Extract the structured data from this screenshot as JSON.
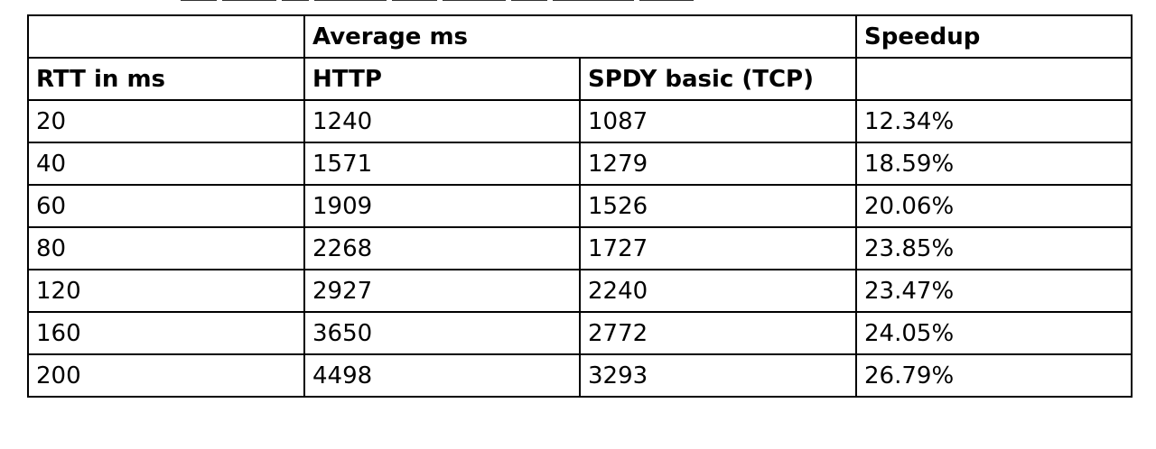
{
  "table": {
    "group_header": {
      "blank": "",
      "average_ms": "Average ms",
      "speedup": "Speedup"
    },
    "columns": {
      "rtt": "RTT in ms",
      "http": "HTTP",
      "spdy": "SPDY basic (TCP)",
      "speedup": ""
    },
    "rows": [
      {
        "rtt": "20",
        "http": "1240",
        "spdy": "1087",
        "speedup": "12.34%"
      },
      {
        "rtt": "40",
        "http": "1571",
        "spdy": "1279",
        "speedup": "18.59%"
      },
      {
        "rtt": "60",
        "http": "1909",
        "spdy": "1526",
        "speedup": "20.06%"
      },
      {
        "rtt": "80",
        "http": "2268",
        "spdy": "1727",
        "speedup": "23.85%"
      },
      {
        "rtt": "120",
        "http": "2927",
        "spdy": "2240",
        "speedup": "23.47%"
      },
      {
        "rtt": "160",
        "http": "3650",
        "spdy": "2772",
        "speedup": "24.05%"
      },
      {
        "rtt": "200",
        "http": "4498",
        "spdy": "3293",
        "speedup": "26.79%"
      }
    ]
  }
}
